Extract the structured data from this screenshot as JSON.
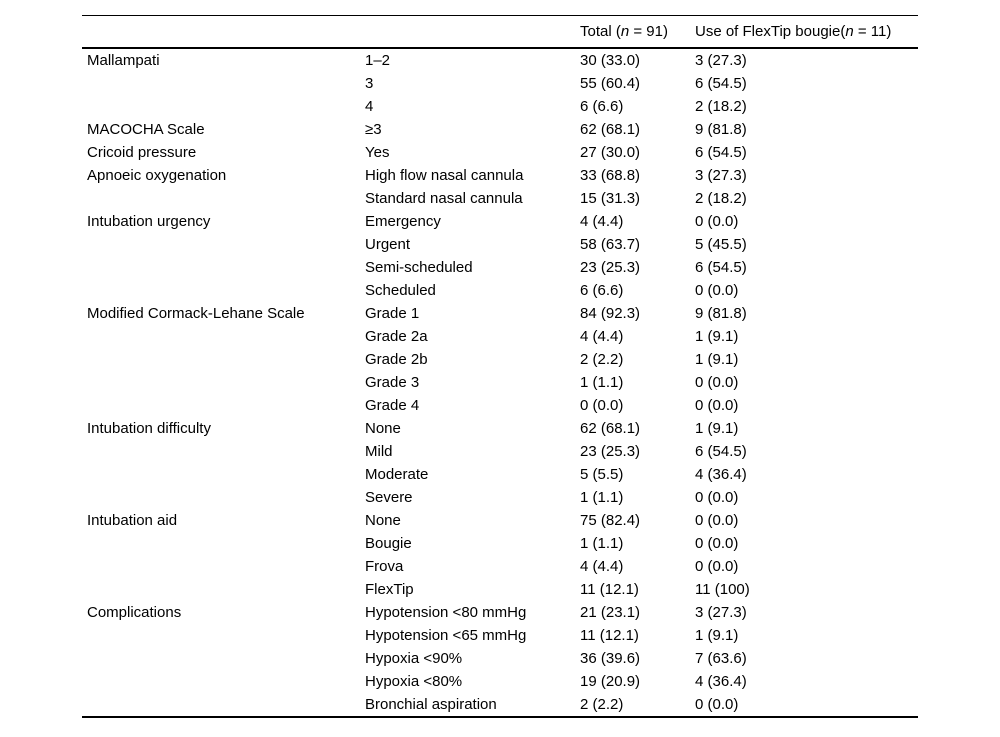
{
  "page": {
    "background_color": "#ffffff",
    "text_color": "#000000",
    "rule_color": "#000000"
  },
  "table": {
    "header": {
      "category_label": "",
      "subcategory_label": "",
      "total": {
        "pre": "Total (",
        "n": "n",
        "post": " = 91)"
      },
      "flextip": {
        "pre": "Use of FlexTip bougie(",
        "n": "n",
        "post": " = 11)"
      }
    },
    "rows": [
      {
        "category": "Mallampati",
        "sub": "1–2",
        "total": "30 (33.0)",
        "flextip": "3 (27.3)"
      },
      {
        "category": "",
        "sub": "3",
        "total": "55 (60.4)",
        "flextip": "6 (54.5)"
      },
      {
        "category": "",
        "sub": "4",
        "total": "6 (6.6)",
        "flextip": "2 (18.2)"
      },
      {
        "category": "MACOCHA Scale",
        "sub": "≥3",
        "total": "62 (68.1)",
        "flextip": "9 (81.8)"
      },
      {
        "category": "Cricoid pressure",
        "sub": "Yes",
        "total": "27 (30.0)",
        "flextip": "6 (54.5)"
      },
      {
        "category": "Apnoeic oxygenation",
        "sub": "High flow nasal cannula",
        "total": "33 (68.8)",
        "flextip": "3 (27.3)"
      },
      {
        "category": "",
        "sub": "Standard nasal cannula",
        "total": "15 (31.3)",
        "flextip": "2 (18.2)"
      },
      {
        "category": "Intubation urgency",
        "sub": "Emergency",
        "total": "4 (4.4)",
        "flextip": "0 (0.0)"
      },
      {
        "category": "",
        "sub": "Urgent",
        "total": "58 (63.7)",
        "flextip": "5 (45.5)"
      },
      {
        "category": "",
        "sub": "Semi-scheduled",
        "total": "23 (25.3)",
        "flextip": "6 (54.5)"
      },
      {
        "category": "",
        "sub": "Scheduled",
        "total": "6 (6.6)",
        "flextip": "0 (0.0)"
      },
      {
        "category": "Modified Cormack-Lehane Scale",
        "sub": "Grade 1",
        "total": "84 (92.3)",
        "flextip": "9 (81.8)"
      },
      {
        "category": "",
        "sub": "Grade 2a",
        "total": "4 (4.4)",
        "flextip": "1 (9.1)"
      },
      {
        "category": "",
        "sub": "Grade 2b",
        "total": "2 (2.2)",
        "flextip": "1 (9.1)"
      },
      {
        "category": "",
        "sub": "Grade 3",
        "total": "1 (1.1)",
        "flextip": "0 (0.0)"
      },
      {
        "category": "",
        "sub": "Grade 4",
        "total": "0 (0.0)",
        "flextip": "0 (0.0)"
      },
      {
        "category": "Intubation difficulty",
        "sub": "None",
        "total": "62 (68.1)",
        "flextip": "1 (9.1)"
      },
      {
        "category": "",
        "sub": "Mild",
        "total": "23 (25.3)",
        "flextip": "6 (54.5)"
      },
      {
        "category": "",
        "sub": "Moderate",
        "total": "5 (5.5)",
        "flextip": "4 (36.4)"
      },
      {
        "category": "",
        "sub": "Severe",
        "total": "1 (1.1)",
        "flextip": "0 (0.0)"
      },
      {
        "category": "Intubation aid",
        "sub": "None",
        "total": "75 (82.4)",
        "flextip": "0 (0.0)"
      },
      {
        "category": "",
        "sub": "Bougie",
        "total": "1 (1.1)",
        "flextip": "0 (0.0)"
      },
      {
        "category": "",
        "sub": "Frova",
        "total": "4 (4.4)",
        "flextip": "0 (0.0)"
      },
      {
        "category": "",
        "sub": "FlexTip",
        "total": "11 (12.1)",
        "flextip": "11 (100)"
      },
      {
        "category": "Complications",
        "sub": "Hypotension <80 mmHg",
        "total": "21 (23.1)",
        "flextip": "3 (27.3)"
      },
      {
        "category": "",
        "sub": "Hypotension <65 mmHg",
        "total": "11 (12.1)",
        "flextip": "1 (9.1)"
      },
      {
        "category": "",
        "sub": "Hypoxia <90%",
        "total": "36 (39.6)",
        "flextip": "7 (63.6)"
      },
      {
        "category": "",
        "sub": "Hypoxia <80%",
        "total": "19 (20.9)",
        "flextip": "4 (36.4)"
      },
      {
        "category": "",
        "sub": "Bronchial aspiration",
        "total": "2 (2.2)",
        "flextip": "0 (0.0)"
      }
    ]
  }
}
